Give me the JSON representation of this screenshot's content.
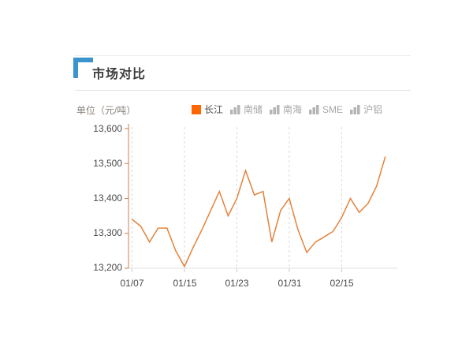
{
  "header": {
    "title": "市场对比"
  },
  "chart": {
    "unit_label": "单位（元/吨）"
  },
  "legend": {
    "items": [
      {
        "label": "长江",
        "active": true
      },
      {
        "label": "南储",
        "active": false
      },
      {
        "label": "南海",
        "active": false
      },
      {
        "label": "SME",
        "active": false
      },
      {
        "label": "沪铝",
        "active": false
      }
    ]
  },
  "colors": {
    "legend_active": "#ff6600",
    "line": "#e5823a",
    "y_axis": "#c97e4e",
    "x_axis": "#e2e2e2",
    "gridline": "#d9d9d9",
    "title_corner": "#3b94cb",
    "inactive_legend": "#b5b5b5"
  },
  "chart_data": {
    "type": "line",
    "title": "市场对比",
    "ylabel": "单位（元/吨）",
    "unit": "元/吨",
    "ylim": [
      13200,
      13600
    ],
    "y_tick_labels": [
      "13,600",
      "13,500",
      "13,400",
      "13,300",
      "13,200"
    ],
    "y_tick_values": [
      13600,
      13500,
      13400,
      13300,
      13200
    ],
    "x_tick_labels": [
      "01/07",
      "01/15",
      "01/23",
      "01/31",
      "02/15"
    ],
    "x_tick_indices": [
      0,
      6,
      12,
      18,
      24
    ],
    "grid": "vertical-dashed",
    "legend_position": "top-right",
    "series": [
      {
        "name": "长江",
        "color": "#e5823a",
        "values": [
          13340,
          13320,
          13275,
          13315,
          13315,
          13250,
          13205,
          13260,
          13310,
          13365,
          13420,
          13350,
          13400,
          13480,
          13410,
          13420,
          13275,
          13365,
          13400,
          13310,
          13245,
          13275,
          13290,
          13305,
          13345,
          13400,
          13360,
          13385,
          13435,
          13520
        ]
      }
    ]
  }
}
